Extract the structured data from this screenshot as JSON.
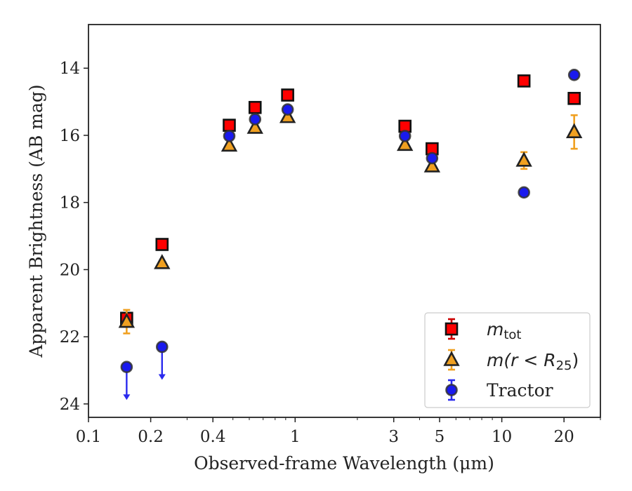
{
  "chart_data": {
    "type": "scatter",
    "xlabel": "Observed-frame Wavelength (μm)",
    "ylabel": "Apparent Brightness (AB mag)",
    "xscale": "log",
    "xlim": [
      0.1,
      30
    ],
    "ylim": [
      24.4,
      12.7
    ],
    "y_inverted": true,
    "xticks": [
      {
        "value": 0.1,
        "label": "0.1"
      },
      {
        "value": 0.2,
        "label": "0.2"
      },
      {
        "value": 0.4,
        "label": "0.4"
      },
      {
        "value": 1,
        "label": "1"
      },
      {
        "value": 3,
        "label": "3"
      },
      {
        "value": 5,
        "label": "5"
      },
      {
        "value": 10,
        "label": "10"
      },
      {
        "value": 20,
        "label": "20"
      }
    ],
    "yticks": [
      {
        "value": 14,
        "label": "14"
      },
      {
        "value": 16,
        "label": "16"
      },
      {
        "value": 18,
        "label": "18"
      },
      {
        "value": 20,
        "label": "20"
      },
      {
        "value": 22,
        "label": "22"
      },
      {
        "value": 24,
        "label": "24"
      }
    ],
    "grid": false,
    "legend": "lower-right",
    "series": [
      {
        "label_main": "m",
        "label_sub": "tot",
        "marker": "square",
        "color": "#ff0000",
        "errcolor": "#cc0000",
        "points": [
          {
            "x": 0.153,
            "y": 21.45,
            "err": 0.1
          },
          {
            "x": 0.227,
            "y": 19.25,
            "err": 0
          },
          {
            "x": 0.48,
            "y": 15.7,
            "err": 0
          },
          {
            "x": 0.64,
            "y": 15.17,
            "err": 0
          },
          {
            "x": 0.92,
            "y": 14.8,
            "err": 0
          },
          {
            "x": 3.4,
            "y": 15.73,
            "err": 0
          },
          {
            "x": 4.6,
            "y": 16.4,
            "err": 0
          },
          {
            "x": 12.8,
            "y": 14.38,
            "err": 0
          },
          {
            "x": 22.4,
            "y": 14.9,
            "err": 0
          }
        ]
      },
      {
        "label_main": "m(r < R",
        "label_sub": "25",
        "label_end": ")",
        "marker": "triangle",
        "color": "#f0a020",
        "errcolor": "#f0a020",
        "points": [
          {
            "x": 0.153,
            "y": 21.55,
            "err": 0.35
          },
          {
            "x": 0.227,
            "y": 19.8,
            "err": 0
          },
          {
            "x": 0.48,
            "y": 16.3,
            "err": 0
          },
          {
            "x": 0.64,
            "y": 15.77,
            "err": 0
          },
          {
            "x": 0.92,
            "y": 15.45,
            "err": 0
          },
          {
            "x": 3.4,
            "y": 16.28,
            "err": 0
          },
          {
            "x": 4.6,
            "y": 16.92,
            "err": 0
          },
          {
            "x": 12.8,
            "y": 16.75,
            "err": 0.25
          },
          {
            "x": 22.4,
            "y": 15.9,
            "err": 0.5
          }
        ]
      },
      {
        "label_main": "Tractor",
        "marker": "circle",
        "color": "#1a1aee",
        "errcolor": "#2a2aee",
        "points": [
          {
            "x": 0.153,
            "y": 22.9,
            "err": 0,
            "upper_limit": true
          },
          {
            "x": 0.227,
            "y": 22.3,
            "err": 0,
            "upper_limit": true
          },
          {
            "x": 0.48,
            "y": 16.02,
            "err": 0
          },
          {
            "x": 0.64,
            "y": 15.52,
            "err": 0
          },
          {
            "x": 0.92,
            "y": 15.23,
            "err": 0
          },
          {
            "x": 3.4,
            "y": 16.02,
            "err": 0
          },
          {
            "x": 4.6,
            "y": 16.68,
            "err": 0
          },
          {
            "x": 12.8,
            "y": 17.7,
            "err": 0
          },
          {
            "x": 22.4,
            "y": 14.2,
            "err": 0
          }
        ]
      }
    ]
  }
}
